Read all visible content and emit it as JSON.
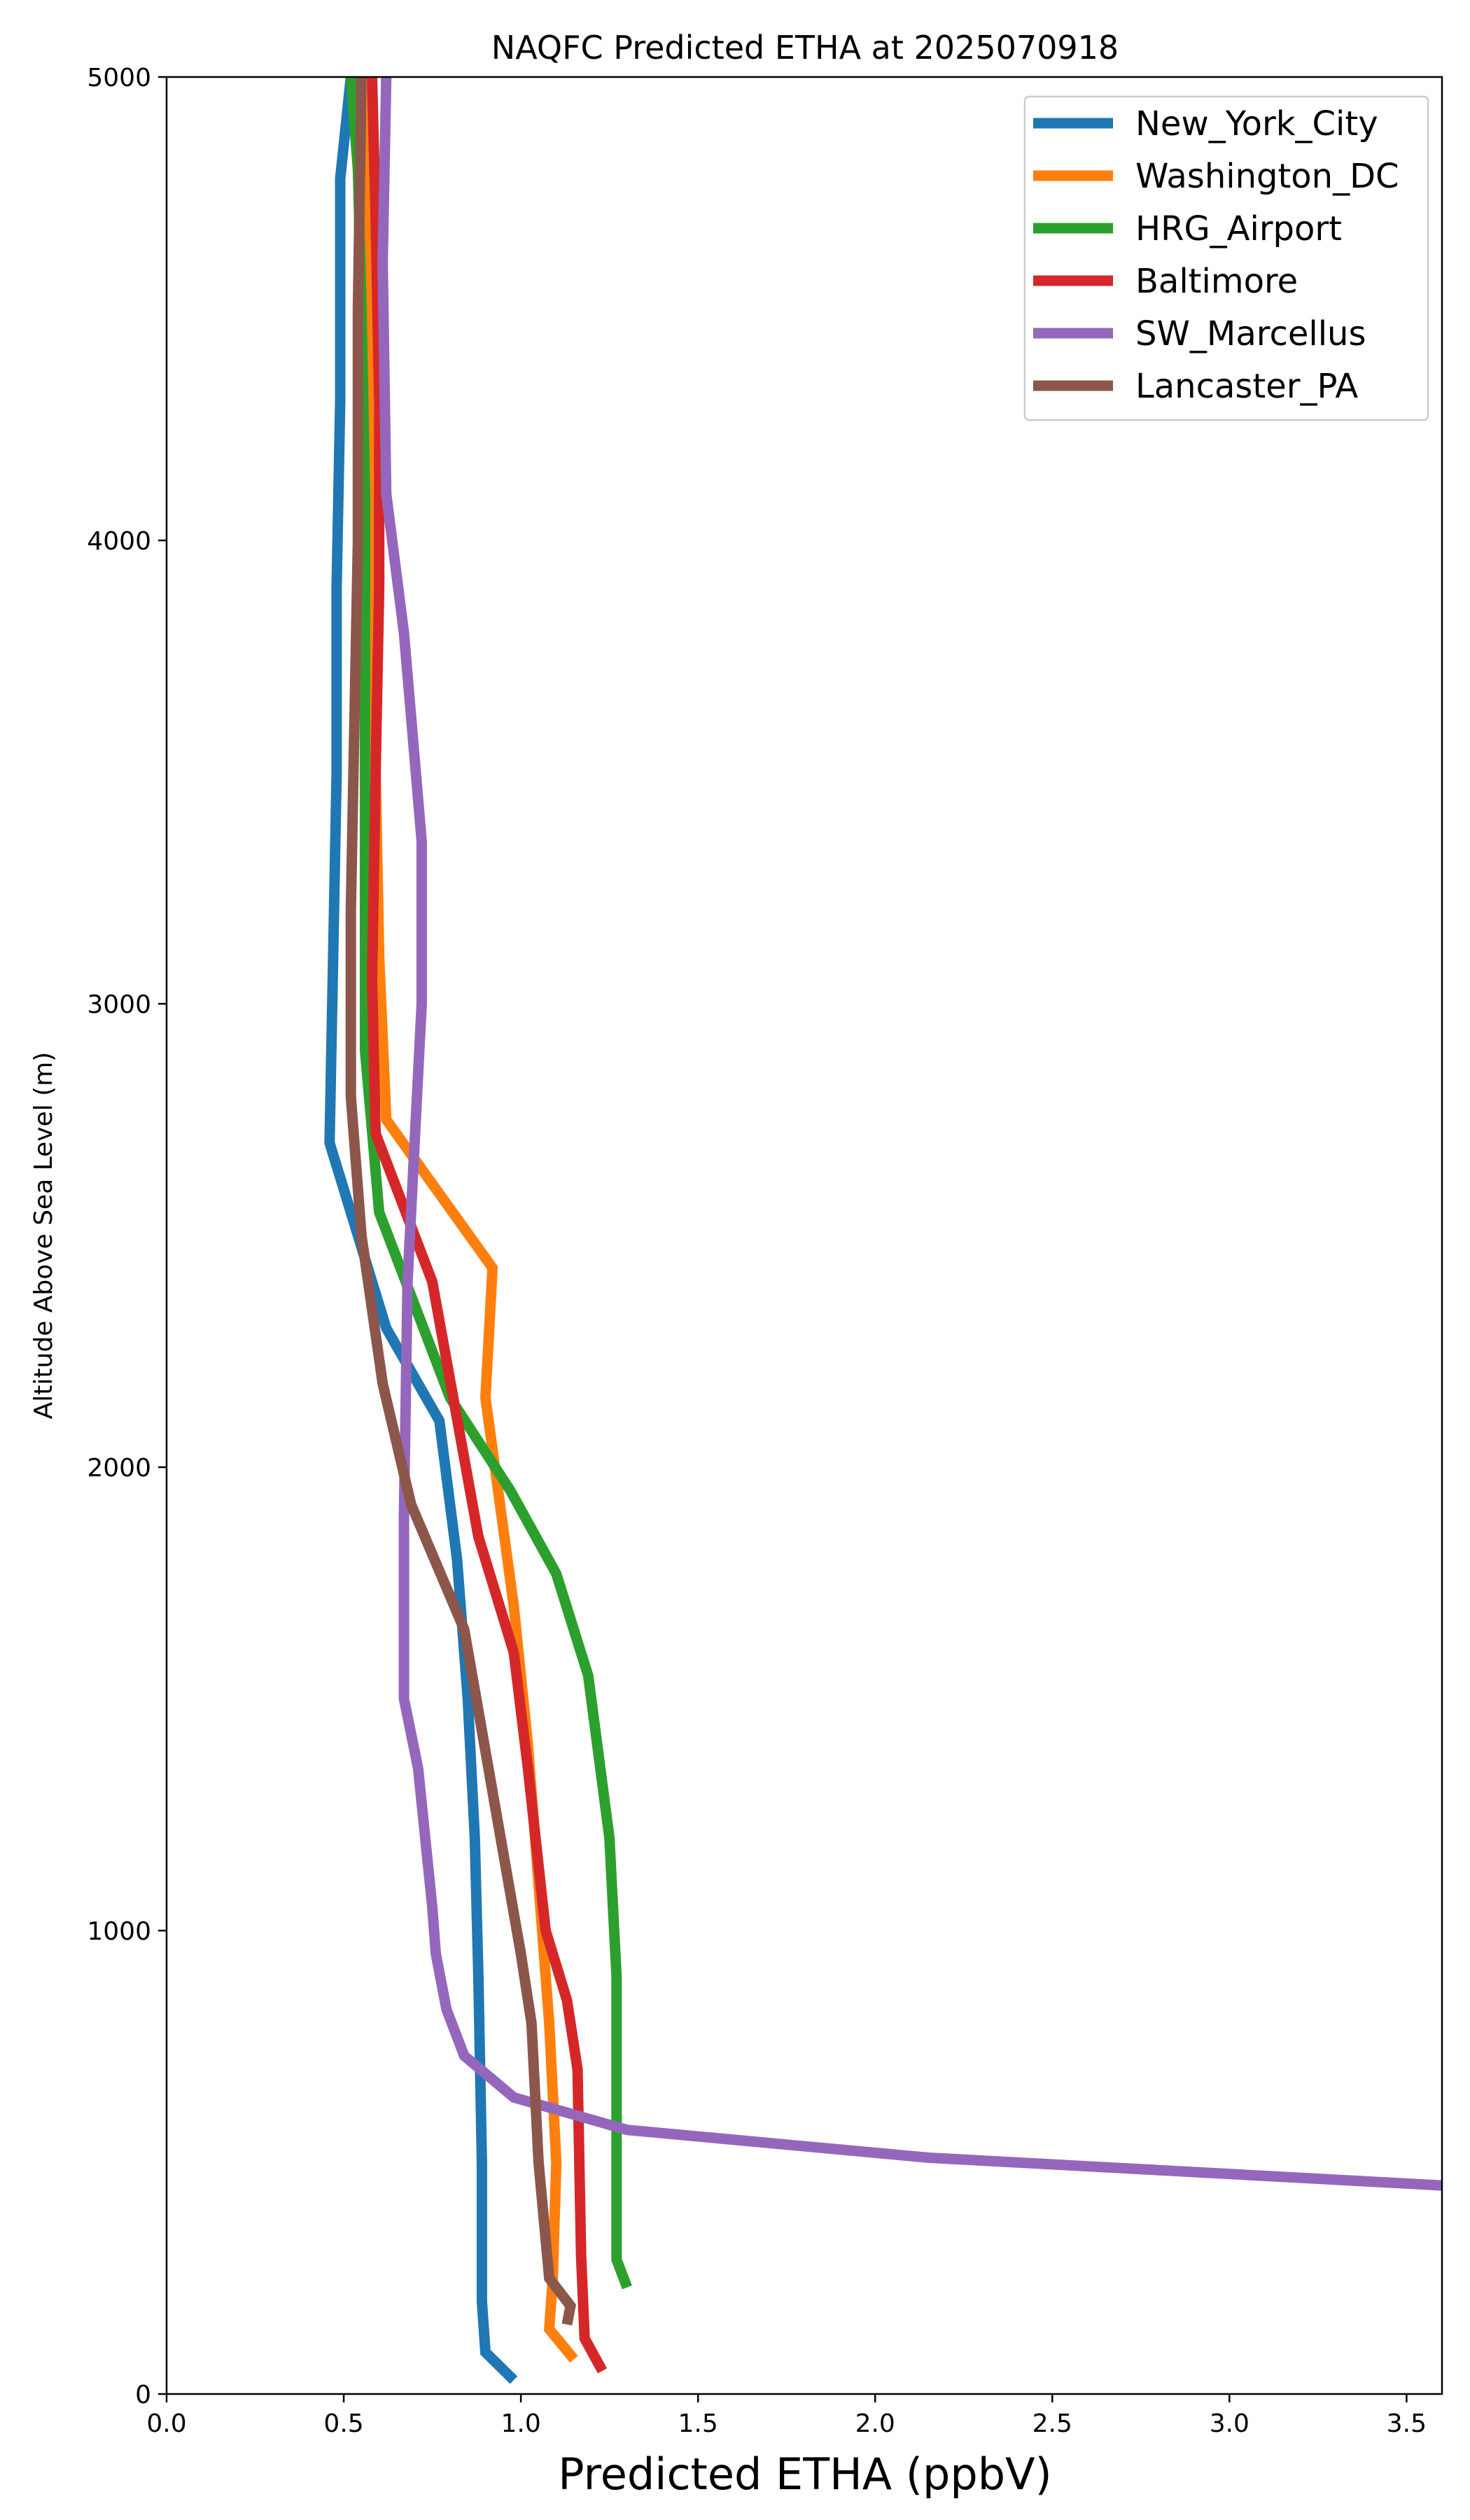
{
  "chart_data": {
    "type": "line",
    "title": "NAQFC Predicted ETHA at 2025070918",
    "xlabel": "Predicted ETHA (ppbV)",
    "ylabel": "Altitude Above Sea Level (m)",
    "xlim": [
      0,
      3.6
    ],
    "ylim": [
      0,
      5000
    ],
    "xticks": [
      "0.0",
      "0.5",
      "1.0",
      "1.5",
      "2.0",
      "2.5",
      "3.0",
      "3.5"
    ],
    "xtick_values": [
      0,
      0.5,
      1.0,
      1.5,
      2.0,
      2.5,
      3.0,
      3.5
    ],
    "yticks": [
      "0",
      "1000",
      "2000",
      "3000",
      "4000",
      "5000"
    ],
    "ytick_values": [
      0,
      1000,
      2000,
      3000,
      4000,
      5000
    ],
    "grid": false,
    "legend_position": "top-right",
    "series": [
      {
        "name": "New_York_City",
        "color": "#1f77b4",
        "points": [
          [
            0.98,
            30
          ],
          [
            0.9,
            90
          ],
          [
            0.89,
            200
          ],
          [
            0.89,
            500
          ],
          [
            0.88,
            900
          ],
          [
            0.87,
            1200
          ],
          [
            0.85,
            1500
          ],
          [
            0.82,
            1800
          ],
          [
            0.77,
            2100
          ],
          [
            0.62,
            2300
          ],
          [
            0.46,
            2700
          ],
          [
            0.47,
            3100
          ],
          [
            0.48,
            3500
          ],
          [
            0.48,
            3900
          ],
          [
            0.49,
            4300
          ],
          [
            0.49,
            4780
          ],
          [
            0.52,
            5000
          ]
        ]
      },
      {
        "name": "Washington_DC",
        "color": "#ff7f0e",
        "points": [
          [
            1.15,
            75
          ],
          [
            1.08,
            140
          ],
          [
            1.09,
            250
          ],
          [
            1.1,
            500
          ],
          [
            1.08,
            800
          ],
          [
            1.05,
            1100
          ],
          [
            1.02,
            1400
          ],
          [
            0.98,
            1700
          ],
          [
            0.9,
            2150
          ],
          [
            0.92,
            2430
          ],
          [
            0.62,
            2750
          ],
          [
            0.6,
            3100
          ],
          [
            0.59,
            3500
          ],
          [
            0.58,
            3900
          ],
          [
            0.57,
            4300
          ],
          [
            0.57,
            4700
          ],
          [
            0.58,
            5000
          ]
        ]
      },
      {
        "name": "HRG_Airport",
        "color": "#2ca02c",
        "points": [
          [
            1.3,
            230
          ],
          [
            1.27,
            290
          ],
          [
            1.27,
            500
          ],
          [
            1.27,
            900
          ],
          [
            1.25,
            1200
          ],
          [
            1.19,
            1550
          ],
          [
            1.1,
            1770
          ],
          [
            0.97,
            1950
          ],
          [
            0.8,
            2150
          ],
          [
            0.6,
            2550
          ],
          [
            0.56,
            2900
          ],
          [
            0.56,
            3300
          ],
          [
            0.56,
            3700
          ],
          [
            0.56,
            4100
          ],
          [
            0.55,
            4500
          ],
          [
            0.54,
            4800
          ],
          [
            0.52,
            5000
          ]
        ]
      },
      {
        "name": "Baltimore",
        "color": "#d62728",
        "points": [
          [
            1.23,
            50
          ],
          [
            1.18,
            120
          ],
          [
            1.17,
            300
          ],
          [
            1.16,
            700
          ],
          [
            1.13,
            850
          ],
          [
            1.07,
            1000
          ],
          [
            1.02,
            1350
          ],
          [
            0.98,
            1600
          ],
          [
            0.88,
            1850
          ],
          [
            0.75,
            2400
          ],
          [
            0.59,
            2720
          ],
          [
            0.58,
            3050
          ],
          [
            0.59,
            3500
          ],
          [
            0.6,
            3900
          ],
          [
            0.6,
            4300
          ],
          [
            0.59,
            4700
          ],
          [
            0.58,
            5000
          ]
        ]
      },
      {
        "name": "SW_Marcellus",
        "color": "#9467bd",
        "points": [
          [
            3.6,
            450
          ],
          [
            2.15,
            510
          ],
          [
            1.3,
            570
          ],
          [
            0.98,
            640
          ],
          [
            0.84,
            730
          ],
          [
            0.79,
            830
          ],
          [
            0.76,
            950
          ],
          [
            0.75,
            1050
          ],
          [
            0.71,
            1350
          ],
          [
            0.67,
            1500
          ],
          [
            0.67,
            1900
          ],
          [
            0.68,
            2400
          ],
          [
            0.7,
            2700
          ],
          [
            0.72,
            3000
          ],
          [
            0.72,
            3350
          ],
          [
            0.67,
            3800
          ],
          [
            0.62,
            4100
          ],
          [
            0.61,
            4600
          ],
          [
            0.62,
            5000
          ]
        ]
      },
      {
        "name": "Lancaster_PA",
        "color": "#8c564b",
        "points": [
          [
            1.13,
            150
          ],
          [
            1.14,
            190
          ],
          [
            1.08,
            250
          ],
          [
            1.05,
            500
          ],
          [
            1.03,
            800
          ],
          [
            1.0,
            950
          ],
          [
            0.92,
            1300
          ],
          [
            0.84,
            1650
          ],
          [
            0.69,
            1920
          ],
          [
            0.61,
            2180
          ],
          [
            0.55,
            2500
          ],
          [
            0.52,
            2800
          ],
          [
            0.52,
            3200
          ],
          [
            0.53,
            3600
          ],
          [
            0.54,
            4000
          ],
          [
            0.54,
            4500
          ],
          [
            0.55,
            5000
          ]
        ]
      }
    ]
  }
}
